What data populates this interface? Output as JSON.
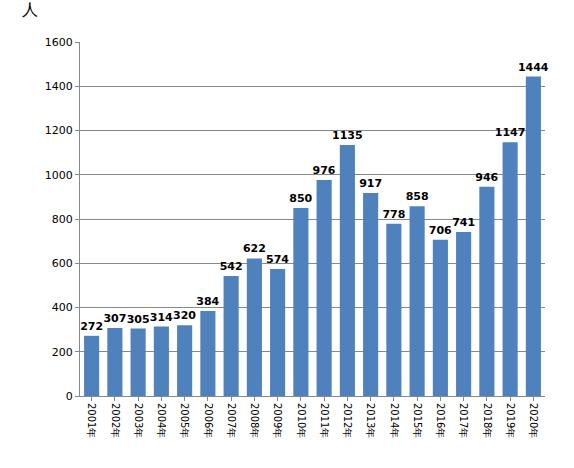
{
  "chart_data": {
    "type": "bar",
    "y_label": "人",
    "categories": [
      "2001年",
      "2002年",
      "2003年",
      "2004年",
      "2005年",
      "2006年",
      "2007年",
      "2008年",
      "2009年",
      "2010年",
      "2011年",
      "2012年",
      "2013年",
      "2014年",
      "2015年",
      "2016年",
      "2017年",
      "2018年",
      "2019年",
      "2020年"
    ],
    "values": [
      272,
      307,
      305,
      314,
      320,
      384,
      542,
      622,
      574,
      850,
      976,
      1135,
      917,
      778,
      858,
      706,
      741,
      946,
      1147,
      1444
    ],
    "color": "#4f81bd",
    "ylim": [
      0,
      1600
    ],
    "yticks": [
      0,
      200,
      400,
      600,
      800,
      1000,
      1200,
      1400,
      1600
    ],
    "grid": true,
    "data_labels": true
  }
}
